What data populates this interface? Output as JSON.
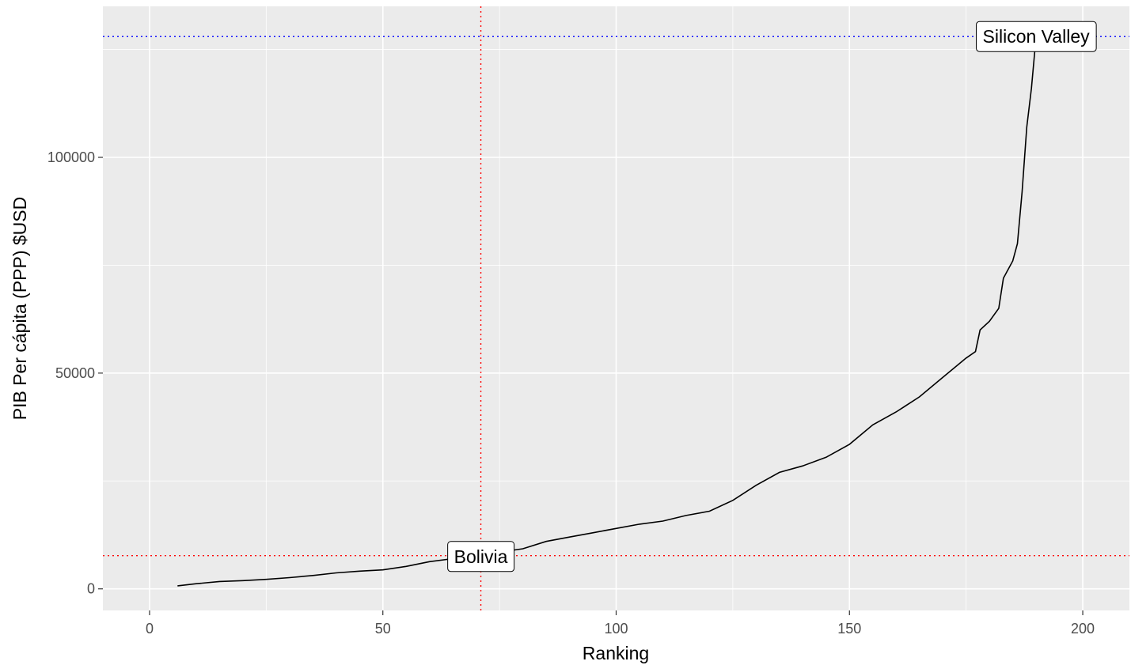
{
  "chart_data": {
    "type": "line",
    "title": "",
    "xlabel": "Ranking",
    "ylabel": "PIB Per cápita (PPP) $USD",
    "xlim": [
      -10,
      210
    ],
    "ylim": [
      -5000,
      135000
    ],
    "x_ticks": [
      0,
      50,
      100,
      150,
      200
    ],
    "x_tick_labels": [
      "0",
      "50",
      "100",
      "150",
      "200"
    ],
    "y_ticks": [
      0,
      50000,
      100000
    ],
    "y_tick_labels": [
      "0",
      "50000",
      "100000"
    ],
    "grid": true,
    "legend": "none",
    "panel_background": "#ebebeb",
    "line_color": "#000000",
    "series": [
      {
        "x": [
          6,
          10,
          15,
          20,
          25,
          30,
          35,
          40,
          45,
          50,
          55,
          60,
          65,
          70,
          75,
          80,
          85,
          90,
          95,
          100,
          105,
          110,
          115,
          120,
          125,
          130,
          135,
          140,
          145,
          150,
          155,
          160,
          165,
          170,
          175,
          177,
          178,
          180,
          182,
          183,
          185,
          186,
          187,
          188,
          189,
          190
        ],
        "y": [
          700,
          1200,
          1700,
          1900,
          2200,
          2600,
          3100,
          3700,
          4100,
          4400,
          5200,
          6300,
          7000,
          7900,
          8500,
          9300,
          11000,
          12000,
          13000,
          14000,
          15000,
          15700,
          17000,
          18000,
          20500,
          24000,
          27000,
          28500,
          30500,
          33500,
          38000,
          41000,
          44500,
          49000,
          53500,
          55000,
          60000,
          62000,
          65000,
          72000,
          76000,
          80000,
          92000,
          107000,
          116000,
          128000
        ]
      }
    ],
    "reference_lines": [
      {
        "orientation": "horizontal",
        "value": 128000,
        "color": "#0000ff",
        "style": "dotted"
      },
      {
        "orientation": "horizontal",
        "value": 7700,
        "color": "#ff0000",
        "style": "dotted"
      },
      {
        "orientation": "vertical",
        "value": 71,
        "color": "#ff0000",
        "style": "dotted"
      }
    ],
    "annotations": [
      {
        "text": "Silicon Valley",
        "x": 190,
        "y": 128000
      },
      {
        "text": "Bolivia",
        "x": 71,
        "y": 7500
      }
    ]
  }
}
